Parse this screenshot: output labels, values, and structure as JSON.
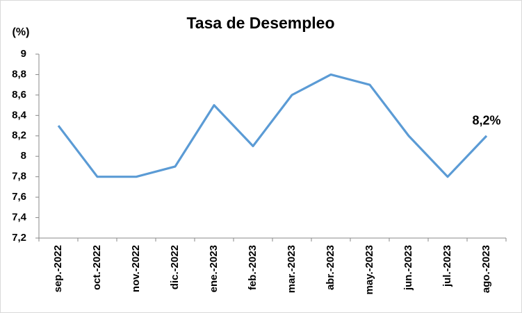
{
  "chart_data": {
    "type": "line",
    "title": "Tasa de Desempleo",
    "y_label": "(%)",
    "categories": [
      "sep.-2022",
      "oct.-2022",
      "nov.-2022",
      "dic.-2022",
      "ene.-2023",
      "feb.-2023",
      "mar.-2023",
      "abr.-2023",
      "may.-2023",
      "jun.-2023",
      "jul.-2023",
      "ago.-2023"
    ],
    "series": [
      {
        "name": "Tasa de Desempleo",
        "color": "#5b9bd5",
        "values": [
          8.3,
          7.8,
          7.8,
          7.9,
          8.5,
          8.1,
          8.6,
          8.8,
          8.7,
          8.2,
          7.8,
          8.2
        ],
        "value_labels": [
          null,
          null,
          null,
          null,
          null,
          null,
          null,
          null,
          null,
          null,
          null,
          "8,2%"
        ]
      }
    ],
    "ylim": [
      7.2,
      9
    ],
    "yticks": [
      {
        "value": 7.2,
        "label": "7,2"
      },
      {
        "value": 7.4,
        "label": "7,4"
      },
      {
        "value": 7.6,
        "label": "7,6"
      },
      {
        "value": 7.8,
        "label": "7,8"
      },
      8,
      {
        "value": 8.2,
        "label": "8,2"
      },
      {
        "value": 8.4,
        "label": "8,4"
      },
      {
        "value": 8.6,
        "label": "8,6"
      },
      {
        "value": 8.8,
        "label": "8,8"
      },
      9
    ],
    "grid": false
  }
}
